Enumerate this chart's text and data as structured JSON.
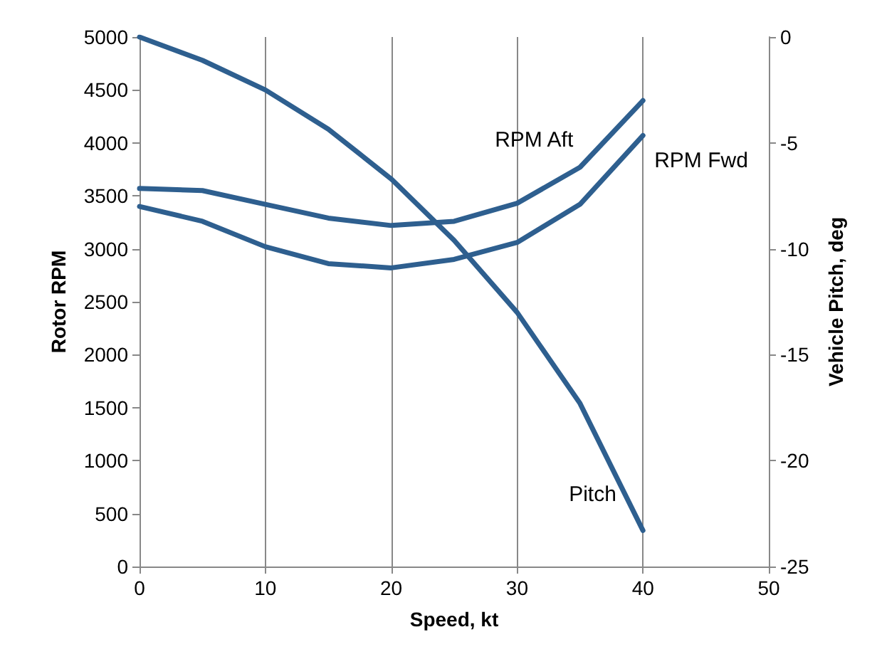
{
  "chart_data": {
    "type": "line",
    "xlabel": "Speed, kt",
    "ylabel": "Rotor RPM",
    "y2label": "Vehicle Pitch, deg",
    "x": [
      0,
      5,
      10,
      15,
      20,
      25,
      30,
      35,
      40
    ],
    "series": [
      {
        "name": "RPM Aft",
        "color": "#2e5f8f",
        "values": [
          3570,
          3550,
          3420,
          3290,
          3220,
          3260,
          3430,
          3770,
          4400
        ]
      },
      {
        "name": "RPM Fwd",
        "color": "#2e5f8f",
        "values": [
          3400,
          3260,
          3020,
          2860,
          2820,
          2900,
          3060,
          3420,
          4070
        ]
      },
      {
        "name": "Pitch",
        "color": "#2e5f8f",
        "axis": "y2",
        "values": [
          0,
          -1.1,
          -2.5,
          -4.35,
          -6.7,
          -9.6,
          -13,
          -17.3,
          -23.3
        ]
      }
    ],
    "xlim": [
      0,
      50
    ],
    "xticks": [
      0,
      10,
      20,
      30,
      40,
      50
    ],
    "ylim": [
      0,
      5000
    ],
    "yticks": [
      0,
      500,
      1000,
      1500,
      2000,
      2500,
      3000,
      3500,
      4000,
      4500,
      5000
    ],
    "y2lim": [
      -25,
      0
    ],
    "y2ticks": [
      -25,
      -20,
      -15,
      -10,
      -5,
      0
    ],
    "grid": "x",
    "legend": false,
    "marker": "none",
    "line_style": "solid"
  }
}
